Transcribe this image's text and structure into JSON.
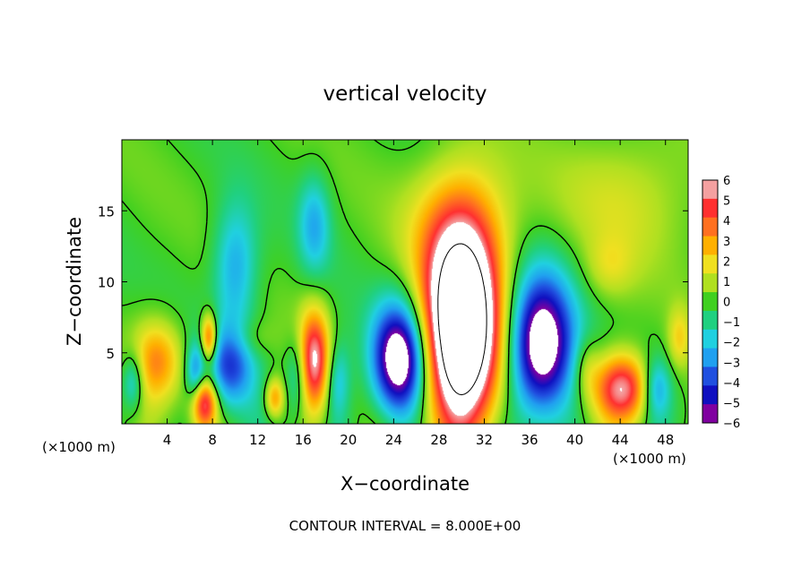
{
  "chart_data": {
    "type": "heatmap",
    "title": "vertical velocity",
    "xlabel": "X−coordinate",
    "ylabel": "Z−coordinate",
    "x_unit_left": "(×1000 m)",
    "x_unit_right": "(×1000 m)",
    "footer": "CONTOUR INTERVAL = 8.000E+00",
    "xlim": [
      0,
      50
    ],
    "ylim": [
      0,
      20
    ],
    "x_ticks": [
      4,
      8,
      12,
      16,
      20,
      24,
      28,
      32,
      36,
      40,
      44,
      48
    ],
    "x_tick_labels": [
      "4",
      "8",
      "12",
      "16",
      "20",
      "24",
      "28",
      "32",
      "36",
      "40",
      "44",
      "48"
    ],
    "y_ticks": [
      5,
      10,
      15
    ],
    "y_tick_labels": [
      "5",
      "10",
      "15"
    ],
    "colorbar": {
      "min": -6,
      "max": 6,
      "levels": [
        6,
        5,
        4,
        3,
        2,
        1,
        0,
        -1,
        -2,
        -3,
        -4,
        -5,
        -6
      ],
      "labels": [
        "6",
        "5",
        "4",
        "3",
        "2",
        "1",
        "0",
        "−1",
        "−2",
        "−3",
        "−4",
        "−5",
        "−6"
      ],
      "colors": [
        "#f4a0a0",
        "#ff3030",
        "#ff7020",
        "#ffb000",
        "#f0e020",
        "#b0e020",
        "#40d020",
        "#20d080",
        "#20d0e0",
        "#20a0f0",
        "#2050e0",
        "#1010c0",
        "#8000a0"
      ]
    },
    "background_value": 0,
    "features": [
      {
        "x": 30,
        "z": 6.5,
        "sx": 2.4,
        "sz": 5.0,
        "w": 12
      },
      {
        "x": 30,
        "z": 14,
        "sx": 3.2,
        "sz": 3.5,
        "w": 2.5
      },
      {
        "x": 3.2,
        "z": 4.5,
        "sx": 1.6,
        "sz": 2.0,
        "w": 3.5
      },
      {
        "x": 7.3,
        "z": 1.5,
        "sx": 0.8,
        "sz": 1.3,
        "w": 6
      },
      {
        "x": 7.7,
        "z": 6.0,
        "sx": 0.5,
        "sz": 1.2,
        "w": 5
      },
      {
        "x": 6.5,
        "z": 3.5,
        "sx": 0.6,
        "sz": 1.5,
        "w": -3
      },
      {
        "x": 10,
        "z": 11,
        "sx": 1.4,
        "sz": 3.2,
        "w": -3
      },
      {
        "x": 9.5,
        "z": 4,
        "sx": 1.5,
        "sz": 2.0,
        "w": -4
      },
      {
        "x": 13.5,
        "z": 1.8,
        "sx": 0.6,
        "sz": 1.0,
        "w": 3.5
      },
      {
        "x": 17,
        "z": 4.5,
        "sx": 1.0,
        "sz": 2.5,
        "w": 6
      },
      {
        "x": 15.5,
        "z": 3.5,
        "sx": 0.7,
        "sz": 2.0,
        "w": -2.5
      },
      {
        "x": 19,
        "z": 3,
        "sx": 0.8,
        "sz": 2.0,
        "w": -2.5
      },
      {
        "x": 24.5,
        "z": 4.5,
        "sx": 1.7,
        "sz": 2.8,
        "w": -8
      },
      {
        "x": 17,
        "z": 14,
        "sx": 1.0,
        "sz": 2.5,
        "w": -2.5
      },
      {
        "x": 37,
        "z": 5.5,
        "sx": 2.0,
        "sz": 3.5,
        "w": -8
      },
      {
        "x": 41,
        "z": 4,
        "sx": 0.8,
        "sz": 1.5,
        "w": 1.5
      },
      {
        "x": 44.2,
        "z": 2.5,
        "sx": 1.8,
        "sz": 1.7,
        "w": 6
      },
      {
        "x": 47.2,
        "z": 2.5,
        "sx": 0.9,
        "sz": 1.5,
        "w": -3
      },
      {
        "x": 49.2,
        "z": 6,
        "sx": 0.7,
        "sz": 1.5,
        "w": 2
      },
      {
        "x": 45,
        "z": 16,
        "sx": 4.5,
        "sz": 3.5,
        "w": 1.5
      },
      {
        "x": 43,
        "z": 11,
        "sx": 1.5,
        "sz": 1.5,
        "w": 1.2
      },
      {
        "x": 1.0,
        "z": 3,
        "sx": 0.7,
        "sz": 1.5,
        "w": -3
      },
      {
        "x": 11.5,
        "z": 6,
        "sx": 1.2,
        "sz": 1.0,
        "w": 1
      }
    ]
  }
}
